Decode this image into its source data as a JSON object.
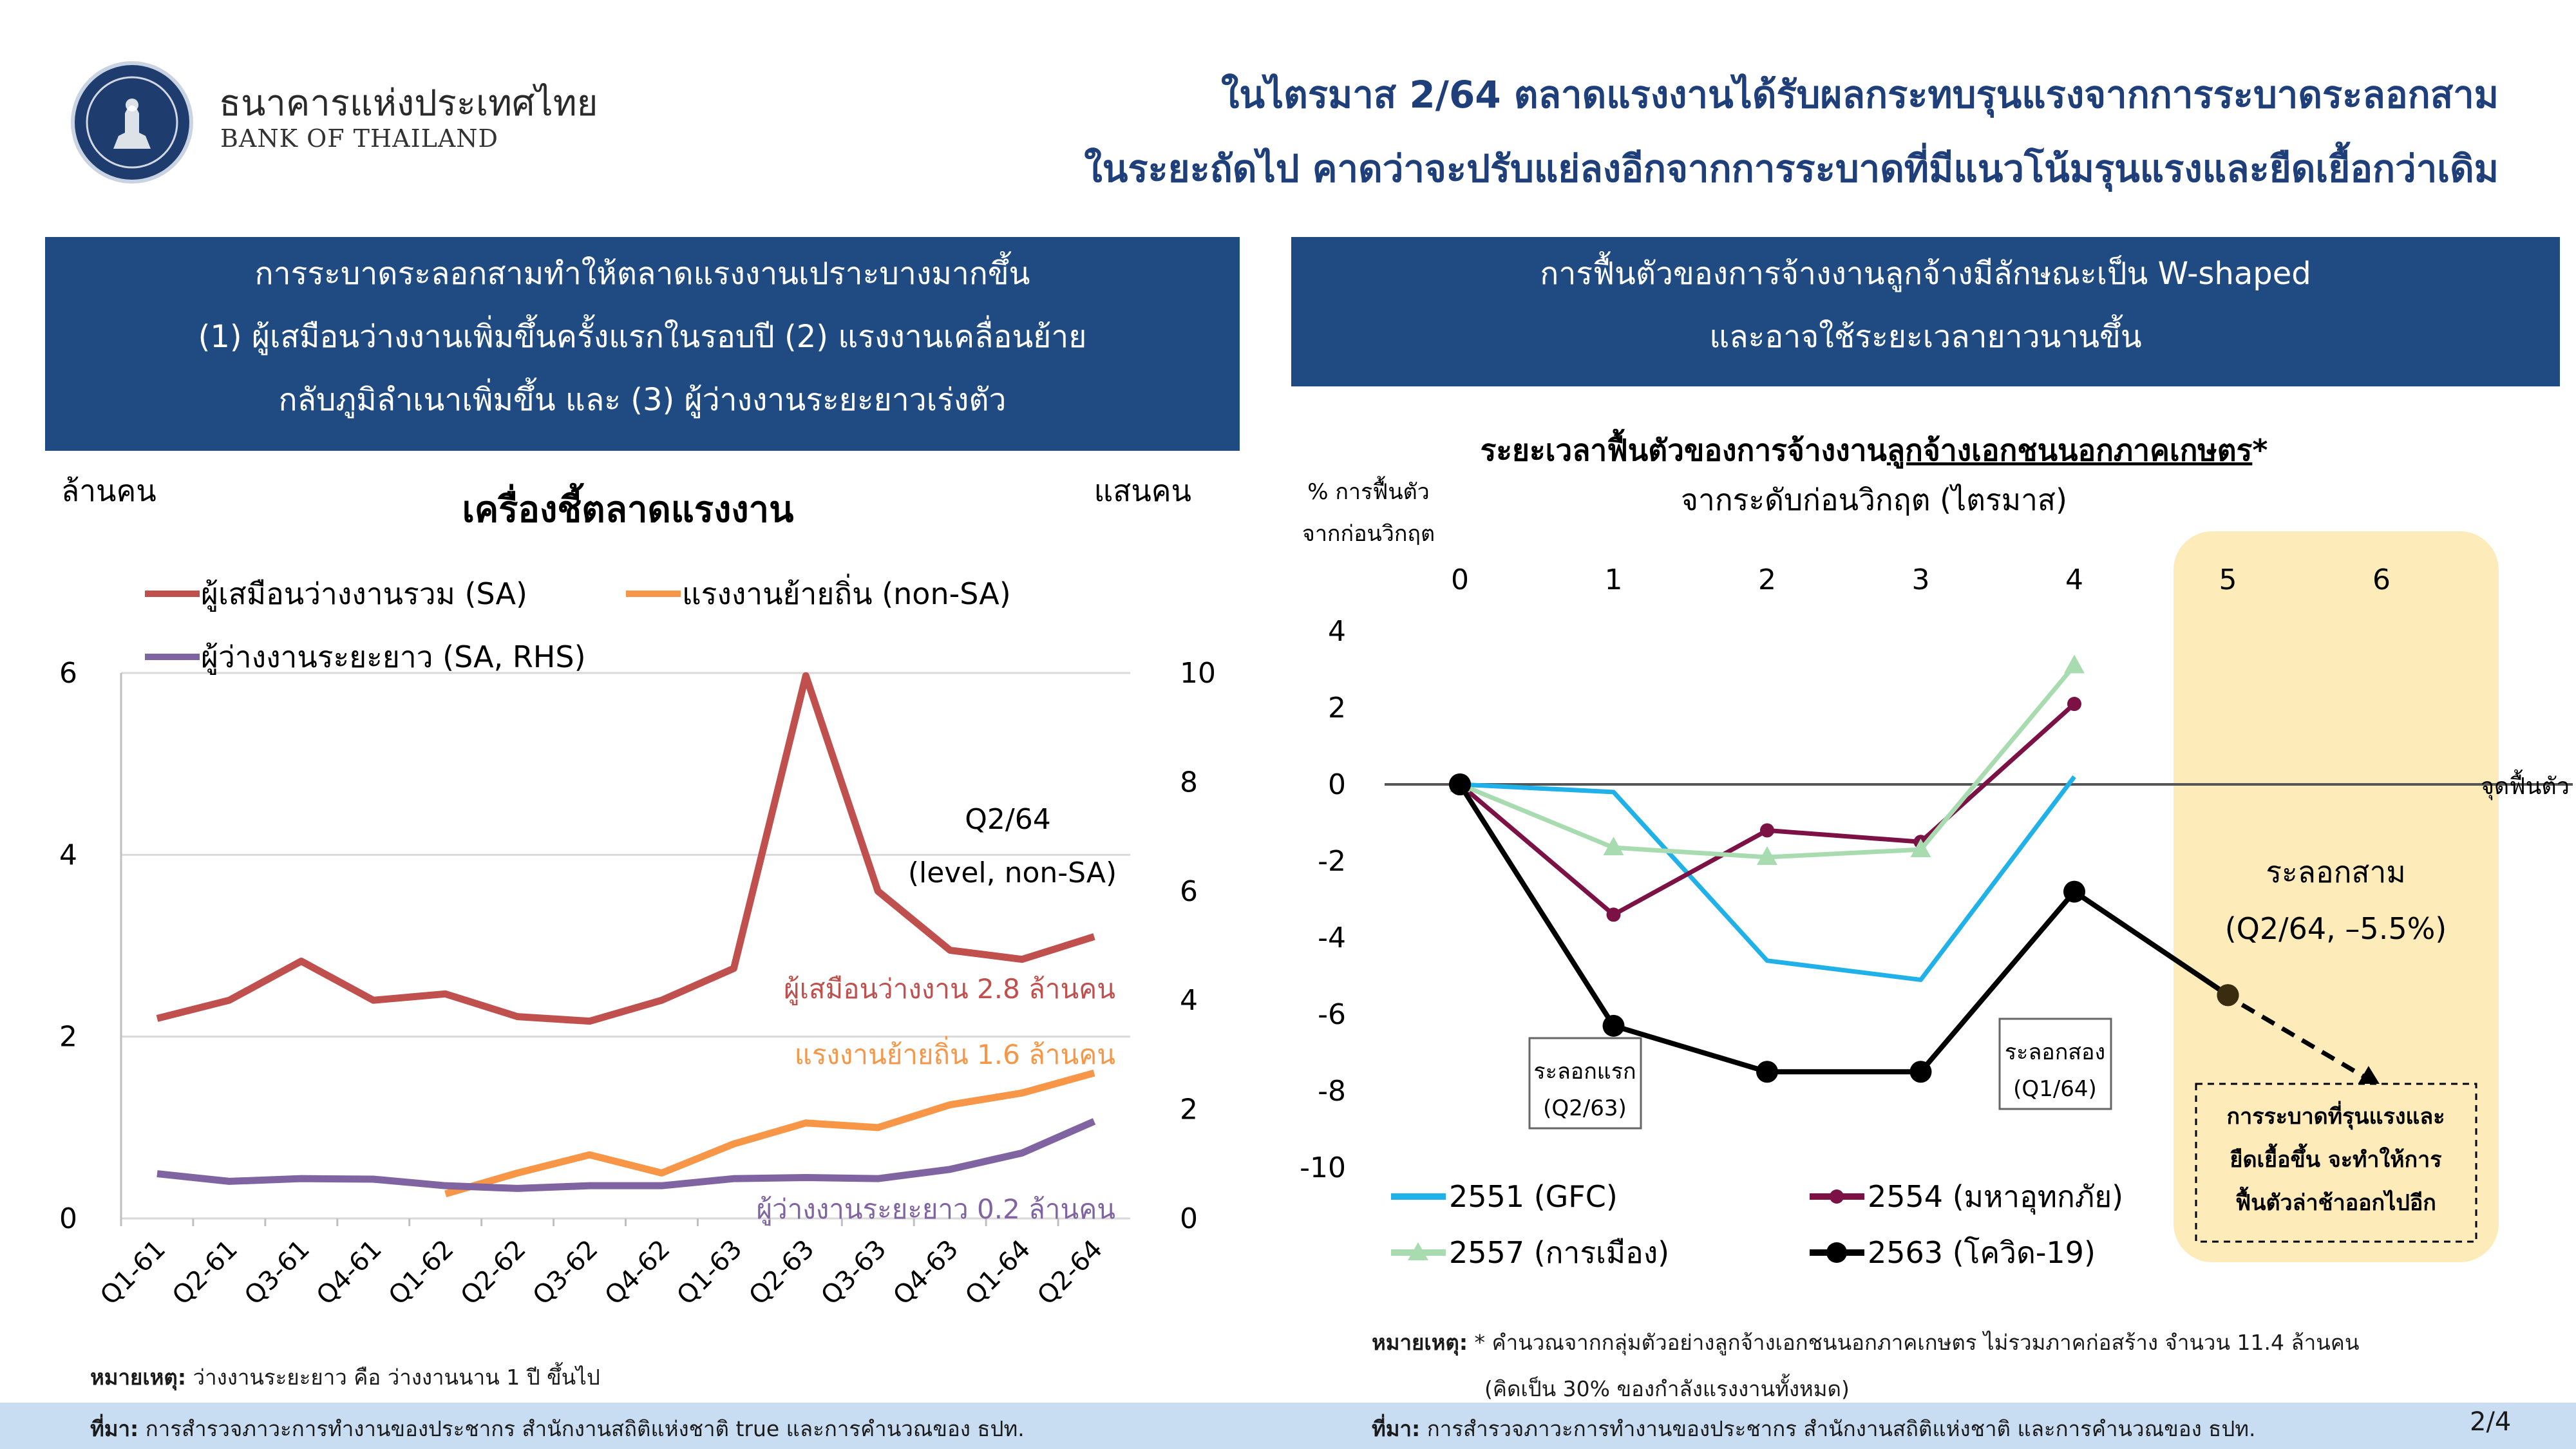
{
  "header": {
    "bank_name_th": "ธนาคารแห่งประเทศไทย",
    "bank_name_en": "BANK OF THAILAND",
    "headline_line1": "ในไตรมาส 2/64 ตลาดแรงงานได้รับผลกระทบรุนแรงจากการระบาดระลอกสาม",
    "headline_line2": "ในระยะถัดไป คาดว่าจะปรับแย่ลงอีกจากการระบาดที่มีแนวโน้มรุนแรงและยืดเยื้อกว่าเดิม"
  },
  "left_panel": {
    "banner_lines": [
      "การระบาดระลอกสามทำให้ตลาดแรงงานเปราะบางมากขึ้น",
      "(1) ผู้เสมือนว่างงานเพิ่มขึ้นครั้งแรกในรอบปี (2) แรงงานเคลื่อนย้าย",
      "กลับภูมิลำเนาเพิ่มขึ้น และ (3) ผู้ว่างงานระยะยาวเร่งตัว"
    ],
    "footnote_label": "หมายเหตุ:",
    "footnote_text": " ว่างงานระยะยาว คือ ว่างงานนาน 1 ปี ขึ้นไป",
    "source_label": "ที่มา:",
    "source_text": " การสำรวจภาวะการทำงานของประชากร สำนักงานสถิติแห่งชาติ true และการคำนวณของ ธปท."
  },
  "right_panel": {
    "banner_lines": [
      "การฟื้นตัวของการจ้างงานลูกจ้างมีลักษณะเป็น W-shaped",
      "และอาจใช้ระยะเวลายาวนานขึ้น"
    ],
    "footnote_label": "หมายเหตุ:",
    "footnote_text_1": " * คำนวณจากกลุ่มตัวอย่างลูกจ้างเอกชนนอกภาคเกษตร ไม่รวมภาคก่อสร้าง จำนวน 11.4 ล้านคน",
    "footnote_text_2": "(คิดเป็น 30% ของกำลังแรงงานทั้งหมด)",
    "source_label": "ที่มา:",
    "source_text": " การสำรวจภาวะการทำงานของประชากร สำนักงานสถิติแห่งชาติ และการคำนวณของ ธปท.",
    "page_number": "2/4"
  },
  "chart_data": [
    {
      "type": "line",
      "title": "เครื่องชี้ตลาดแรงงาน",
      "ylabel": "ล้านคน",
      "y2label": "แสนคน",
      "ylim": [
        0,
        6
      ],
      "yticks": [
        "0",
        "2",
        "4",
        "6"
      ],
      "y2lim": [
        0,
        10
      ],
      "y2ticks": [
        "0",
        "2",
        "4",
        "6",
        "8",
        "10"
      ],
      "categories": [
        "Q1-61",
        "Q2-61",
        "Q3-61",
        "Q4-61",
        "Q1-62",
        "Q2-62",
        "Q3-62",
        "Q4-62",
        "Q1-63",
        "Q2-63",
        "Q3-63",
        "Q4-63",
        "Q1-64",
        "Q2-64"
      ],
      "series": [
        {
          "name": "ผู้เสมือนว่างงานรวม (SA)",
          "axis": "left",
          "color": "#c0504d",
          "values": [
            2.2,
            2.4,
            2.83,
            2.4,
            2.47,
            2.22,
            2.17,
            2.4,
            2.75,
            5.97,
            3.6,
            2.95,
            2.85,
            3.1
          ]
        },
        {
          "name": "แรงงานย้ายถิ่น (non-SA)",
          "axis": "left",
          "color": "#f79646",
          "values": [
            null,
            null,
            null,
            null,
            0.27,
            0.5,
            0.7,
            0.5,
            0.82,
            1.05,
            1.0,
            1.25,
            1.38,
            1.6
          ]
        },
        {
          "name": "ผู้ว่างงานระยะยาว (SA, RHS)",
          "axis": "right",
          "color": "#8064a2",
          "values": [
            0.82,
            0.68,
            0.73,
            0.72,
            0.6,
            0.55,
            0.6,
            0.6,
            0.73,
            0.75,
            0.73,
            0.9,
            1.2,
            1.78
          ]
        }
      ],
      "legend": "top-left",
      "annotations": {
        "q2_64_title": "Q2/64",
        "q2_64_sub": "(level, non-SA)",
        "label_quasi": "ผู้เสมือนว่างงาน 2.8 ล้านคน",
        "label_migrant": "แรงงานย้ายถิ่น 1.6 ล้านคน",
        "label_longterm": "ผู้ว่างงานระยะยาว 0.2 ล้านคน"
      },
      "grid": "horizontal"
    },
    {
      "type": "line",
      "title_prefix": "ระยะเวลาฟื้นตัวของการจ้างงาน",
      "title_underlined": "ลูกจ้างเอกชนนอกภาคเกษตร",
      "title_suffix": "*",
      "subtitle": "จากระดับก่อนวิกฤต (ไตรมาส)",
      "ylabel_line1": "% การฟื้นตัว",
      "ylabel_line2": "จากก่อนวิกฤต",
      "x": [
        0,
        1,
        2,
        3,
        4,
        5,
        6
      ],
      "xticks": [
        "0",
        "1",
        "2",
        "3",
        "4",
        "5",
        "6"
      ],
      "ylim": [
        -10,
        4
      ],
      "yticks": [
        "4",
        "2",
        "0",
        "-2",
        "-4",
        "-6",
        "-8",
        "-10"
      ],
      "zero_line_label": "จุดฟื้นตัว",
      "series": [
        {
          "name": "2551 (GFC)",
          "color": "#1fb1e8",
          "marker": "none",
          "points": [
            [
              0,
              0
            ],
            [
              1,
              -0.2
            ],
            [
              2,
              -4.6
            ],
            [
              3,
              -5.1
            ],
            [
              4,
              0.2
            ]
          ]
        },
        {
          "name": "2554 (มหาอุทกภัย)",
          "color": "#7b1144",
          "marker": "dot",
          "points": [
            [
              0,
              0
            ],
            [
              1,
              -3.4
            ],
            [
              2,
              -1.2
            ],
            [
              3,
              -1.5
            ],
            [
              4,
              2.1
            ]
          ]
        },
        {
          "name": "2557 (การเมือง)",
          "color": "#a8dcb0",
          "marker": "triangle",
          "points": [
            [
              0,
              0
            ],
            [
              1,
              -1.65
            ],
            [
              2,
              -1.9
            ],
            [
              3,
              -1.7
            ],
            [
              4,
              3.1
            ]
          ]
        },
        {
          "name": "2563 (โควิด-19)",
          "color": "#000000",
          "marker": "dot",
          "points": [
            [
              0,
              0
            ],
            [
              1,
              -6.3
            ],
            [
              2,
              -7.5
            ],
            [
              3,
              -7.5
            ],
            [
              4,
              -2.8
            ],
            [
              5,
              -5.5
            ]
          ]
        }
      ],
      "forecast_arrow": {
        "from": [
          5,
          -5.5
        ],
        "to": [
          6,
          -7.9
        ]
      },
      "annotations": {
        "wave1_line1": "ระลอกแรก",
        "wave1_line2": "(Q2/63)",
        "wave2_line1": "ระลอกสอง",
        "wave2_line2": "(Q1/64)",
        "wave3_title": "ระลอกสาม",
        "wave3_value": "(Q2/64, –5.5%)",
        "forecast_line1": "การระบาดที่รุนแรงและ",
        "forecast_line2": "ยืดเยื้อขึ้น จะทำให้การ",
        "forecast_line3": "ฟื้นตัวล่าช้าออกไปอีก"
      },
      "legend": "bottom"
    }
  ]
}
